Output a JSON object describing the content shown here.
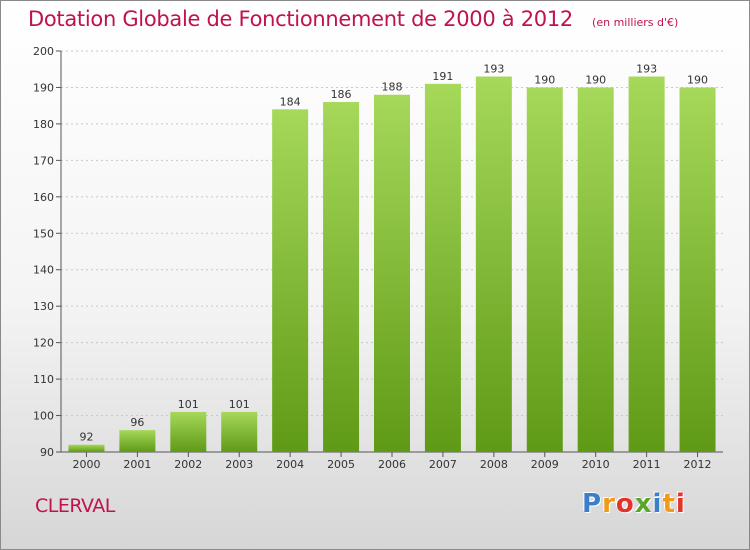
{
  "title": "Dotation Globale de Fonctionnement de 2000 à 2012",
  "unit_note": "(en milliers d'€)",
  "place": "CLERVAL",
  "logo": {
    "text": "Proxiti",
    "letter_colors": [
      "#3a7fc8",
      "#f09a1a",
      "#e2342b",
      "#5aa62a",
      "#3a7fc8",
      "#f09a1a",
      "#e2342b"
    ]
  },
  "colors": {
    "title": "#c0124d",
    "bar_light": "#a6d85a",
    "bar_dark": "#5f9a16"
  },
  "chart_data": {
    "type": "bar",
    "title": "Dotation Globale de Fonctionnement de 2000 à 2012",
    "subtitle": "(en milliers d'€)",
    "xlabel": "",
    "ylabel": "",
    "categories": [
      "2000",
      "2001",
      "2002",
      "2003",
      "2004",
      "2005",
      "2006",
      "2007",
      "2008",
      "2009",
      "2010",
      "2011",
      "2012"
    ],
    "values": [
      92,
      96,
      101,
      101,
      184,
      186,
      188,
      191,
      193,
      190,
      190,
      193,
      190
    ],
    "ylim": [
      90,
      200
    ],
    "yticks": [
      90,
      100,
      110,
      120,
      130,
      140,
      150,
      160,
      170,
      180,
      190,
      200
    ],
    "grid": "horizontal dashed",
    "legend": "none"
  }
}
